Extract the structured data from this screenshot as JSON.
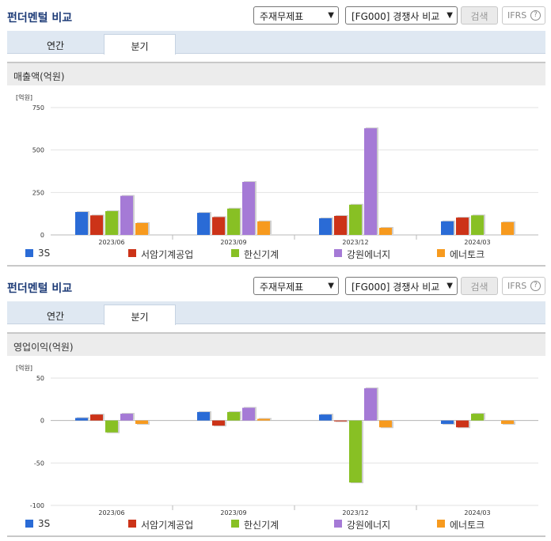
{
  "panels": [
    {
      "title": "펀더멘털 비교",
      "select_statement": "주재무제표",
      "select_compare": "[FG000] 경쟁사 비교",
      "search_label": "검색",
      "ifrs_label": "IFRS",
      "help_label": "?",
      "tabs": [
        "연간",
        "분기"
      ],
      "active_tab": "분기",
      "section_title": "매출액(억원)",
      "unit_label": "[억원]"
    },
    {
      "title": "펀더멘털 비교",
      "select_statement": "주재무제표",
      "select_compare": "[FG000] 경쟁사 비교",
      "search_label": "검색",
      "ifrs_label": "IFRS",
      "help_label": "?",
      "tabs": [
        "연간",
        "분기"
      ],
      "active_tab": "분기",
      "section_title": "영업이익(억원)",
      "unit_label": "[억원]"
    }
  ],
  "colors": {
    "title": "#1e3c78",
    "series": [
      "#2a6bd6",
      "#cc3318",
      "#88c024",
      "#a57ad6",
      "#f79a1e"
    ],
    "grid": "#e2e2e2",
    "tabbar": "#dfe8f2"
  },
  "chart_data": [
    {
      "type": "bar",
      "categories": [
        "2023/06",
        "2023/09",
        "2023/12",
        "2024/03"
      ],
      "ylim": [
        0,
        750
      ],
      "yticks": [
        0,
        250,
        500,
        750
      ],
      "legend_position": "bottom",
      "grid": true,
      "series": [
        {
          "name": "3S",
          "values": [
            135,
            130,
            98,
            80
          ]
        },
        {
          "name": "서암기계공업",
          "values": [
            115,
            105,
            112,
            102
          ]
        },
        {
          "name": "한신기계",
          "values": [
            140,
            155,
            178,
            115
          ]
        },
        {
          "name": "강원에너지",
          "values": [
            230,
            312,
            628,
            null
          ]
        },
        {
          "name": "에너토크",
          "values": [
            70,
            80,
            42,
            75
          ]
        }
      ]
    },
    {
      "type": "bar",
      "categories": [
        "2023/06",
        "2023/09",
        "2023/12",
        "2024/03"
      ],
      "ylim": [
        -100,
        50
      ],
      "yticks": [
        -100,
        -50,
        0,
        50
      ],
      "legend_position": "bottom",
      "grid": true,
      "series": [
        {
          "name": "3S",
          "values": [
            3,
            10,
            7,
            -4
          ]
        },
        {
          "name": "서암기계공업",
          "values": [
            7,
            -6,
            -1,
            -8
          ]
        },
        {
          "name": "한신기계",
          "values": [
            -14,
            10,
            -73,
            8
          ]
        },
        {
          "name": "강원에너지",
          "values": [
            8,
            15,
            38,
            null
          ]
        },
        {
          "name": "에너토크",
          "values": [
            -4,
            2,
            -8,
            -4
          ]
        }
      ]
    }
  ]
}
